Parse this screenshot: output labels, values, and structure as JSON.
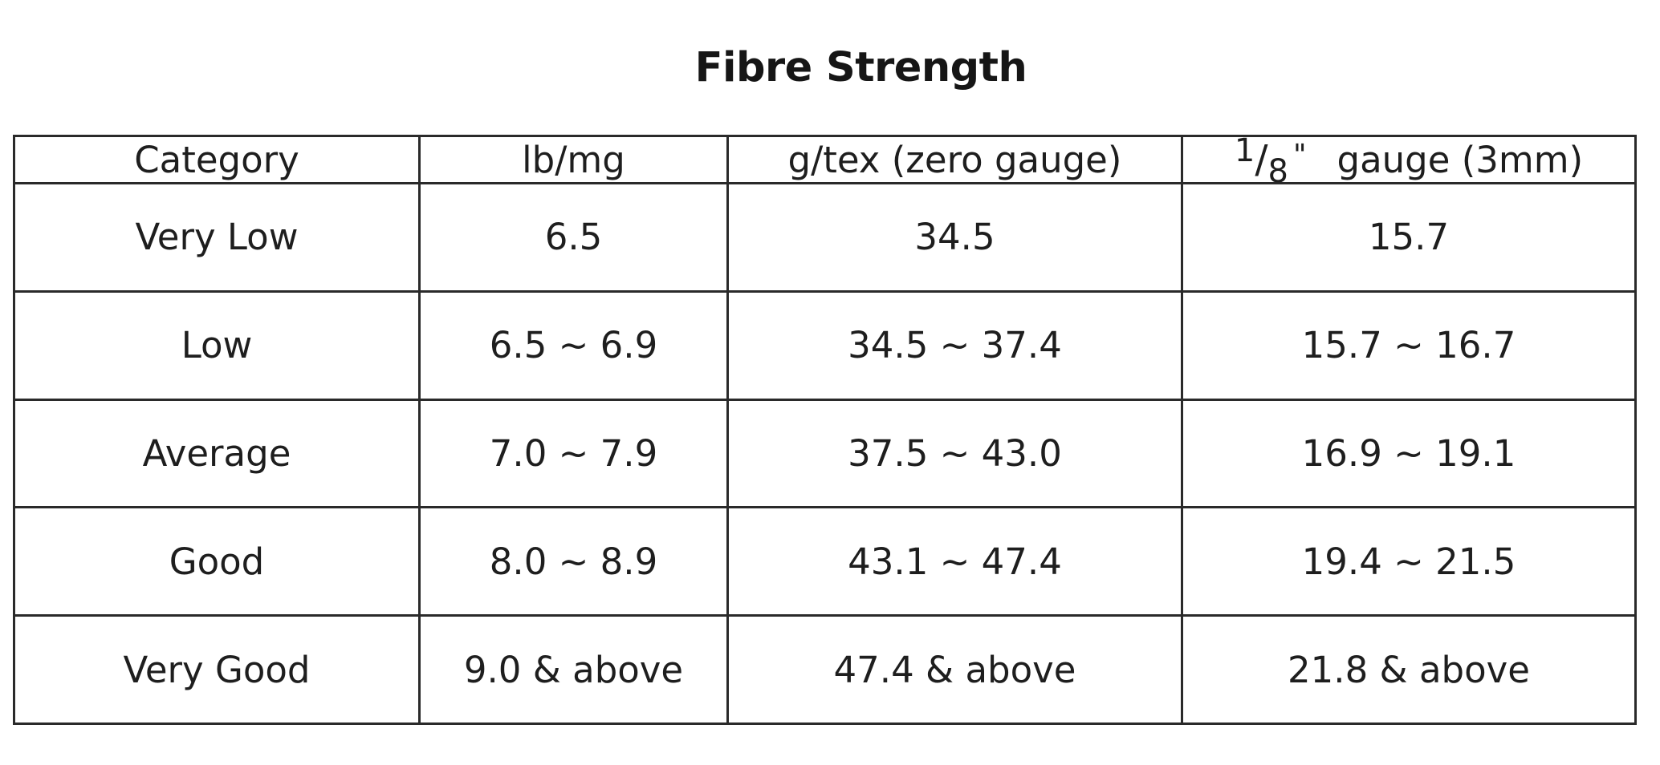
{
  "title": "Fibre Strength",
  "headers": {
    "category": "Category",
    "lb_mg": "lb/mg",
    "g_tex": "g/tex (zero gauge)",
    "eighth_gauge": {
      "numerator": "1",
      "slash": "/",
      "denominator": "8",
      "inch_mark": "\"",
      "label": "gauge (3mm)"
    }
  },
  "rows": [
    {
      "category": "Very Low",
      "lb_mg": "6.5",
      "g_tex": "34.5",
      "eighth_gauge": "15.7"
    },
    {
      "category": "Low",
      "lb_mg": "6.5 ~ 6.9",
      "g_tex": "34.5 ~ 37.4",
      "eighth_gauge": "15.7 ~ 16.7"
    },
    {
      "category": "Average",
      "lb_mg": "7.0 ~ 7.9",
      "g_tex": "37.5 ~ 43.0",
      "eighth_gauge": "16.9 ~ 19.1"
    },
    {
      "category": "Good",
      "lb_mg": "8.0 ~ 8.9",
      "g_tex": "43.1 ~ 47.4",
      "eighth_gauge": "19.4 ~ 21.5"
    },
    {
      "category": "Very Good",
      "lb_mg": "9.0 & above",
      "g_tex": "47.4 & above",
      "eighth_gauge": "21.8 & above"
    }
  ]
}
